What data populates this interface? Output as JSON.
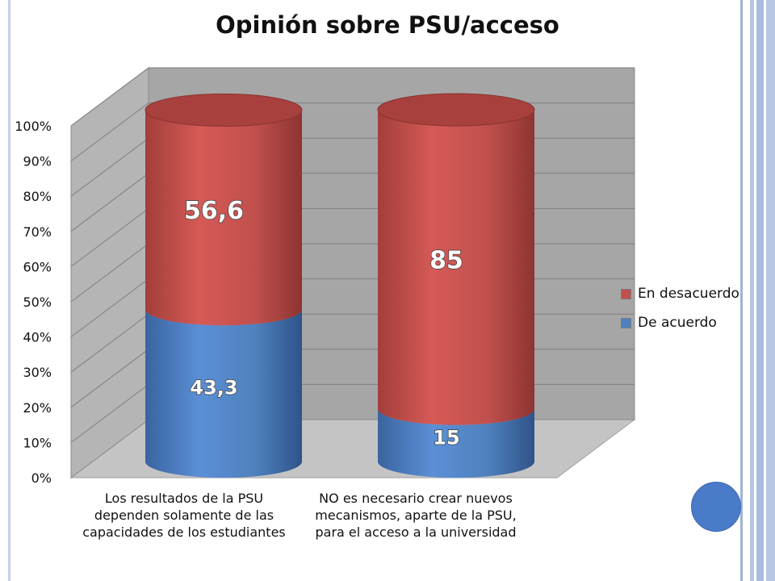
{
  "chart_data": {
    "type": "bar",
    "stacked": true,
    "style": "3d-cylinder",
    "title": "Opinión sobre PSU/acceso",
    "categories": [
      "Los resultados de la PSU dependen solamente de las capacidades de los estudiantes",
      "NO es necesario crear nuevos mecanismos, aparte de la PSU, para el acceso a la universidad"
    ],
    "series": [
      {
        "name": "De acuerdo",
        "values": [
          43.3,
          15
        ],
        "labels": [
          "43,3",
          "15"
        ],
        "color": "#4f81bd"
      },
      {
        "name": "En desacuerdo",
        "values": [
          56.6,
          85
        ],
        "labels": [
          "56,6",
          "85"
        ],
        "color": "#c0504d"
      }
    ],
    "yticks": [
      "0%",
      "10%",
      "20%",
      "30%",
      "40%",
      "50%",
      "60%",
      "70%",
      "80%",
      "90%",
      "100%"
    ],
    "ylim": [
      0,
      100
    ],
    "grid": true,
    "legend": "right"
  }
}
